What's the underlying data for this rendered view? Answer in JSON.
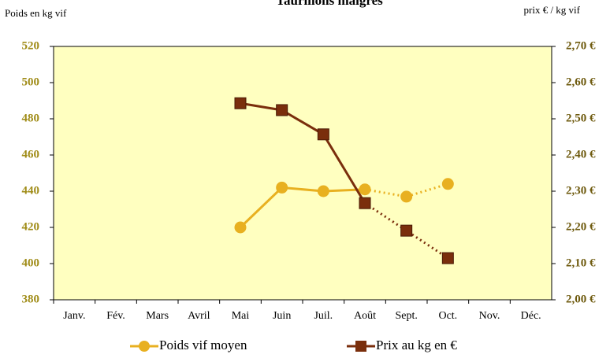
{
  "chart_data": {
    "type": "line",
    "title": "Taurillons maigres",
    "y_label": "Poids en kg vif",
    "y2_label": "prix € / kg vif",
    "categories": [
      "Janv.",
      "Fév.",
      "Mars",
      "Avril",
      "Mai",
      "Juin",
      "Juil.",
      "Août",
      "Sept.",
      "Oct.",
      "Nov.",
      "Déc."
    ],
    "series": [
      {
        "name": "Poids vif moyen",
        "color": "#e8b020",
        "marker": "circle",
        "values": [
          null,
          null,
          null,
          null,
          420,
          442,
          440,
          441,
          437,
          444,
          null,
          null
        ]
      },
      {
        "name": "Prix au kg en €",
        "color": "#7a2e0c",
        "marker": "square",
        "axis": "y2",
        "values": [
          null,
          null,
          null,
          null,
          2.543,
          2.524,
          2.457,
          2.267,
          2.191,
          2.115,
          null,
          null
        ]
      }
    ],
    "dotted_from_index": 7,
    "ylim": [
      380,
      520
    ],
    "yticks": [
      380,
      400,
      420,
      440,
      460,
      480,
      500,
      520
    ],
    "y2lim": [
      2.0,
      2.7
    ],
    "y2ticks": [
      {
        "value": 2.0,
        "label": "2,00 €"
      },
      {
        "value": 2.1,
        "label": "2,10 €"
      },
      {
        "value": 2.2,
        "label": "2,20 €"
      },
      {
        "value": 2.3,
        "label": "2,30 €"
      },
      {
        "value": 2.4,
        "label": "2,40 €"
      },
      {
        "value": 2.5,
        "label": "2,50 €"
      },
      {
        "value": 2.6,
        "label": "2,60 €"
      },
      {
        "value": 2.7,
        "label": "2,70 €"
      }
    ],
    "plot_background": "#ffffc0"
  }
}
